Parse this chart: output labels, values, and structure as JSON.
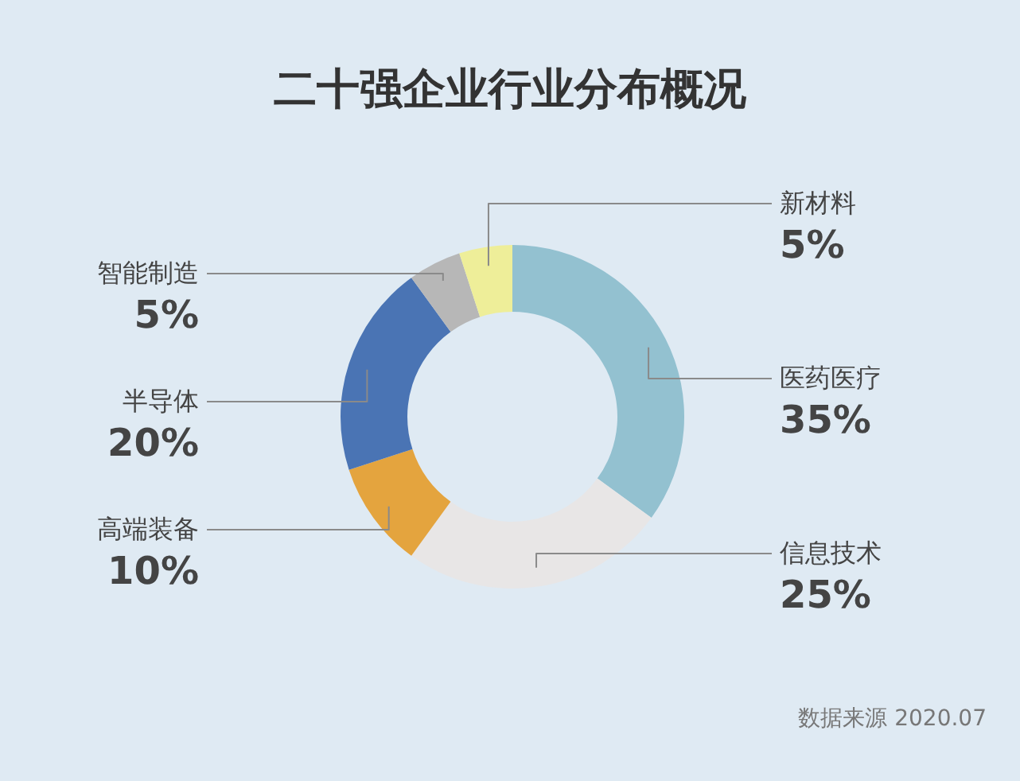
{
  "chart_data": {
    "type": "donut",
    "title": "二十强企业行业分布概况",
    "categories": [
      "医药医疗",
      "信息技术",
      "高端装备",
      "半导体",
      "智能制造",
      "新材料"
    ],
    "values": [
      35,
      25,
      10,
      20,
      5,
      5
    ],
    "colors": [
      "#93c1d0",
      "#e8e6e6",
      "#e4a43e",
      "#4a74b4",
      "#b7b7b7",
      "#eeee99"
    ],
    "value_labels": [
      "35%",
      "25%",
      "10%",
      "20%",
      "5%",
      "5%"
    ],
    "annotations": [
      "数据来源 2020.07"
    ]
  }
}
